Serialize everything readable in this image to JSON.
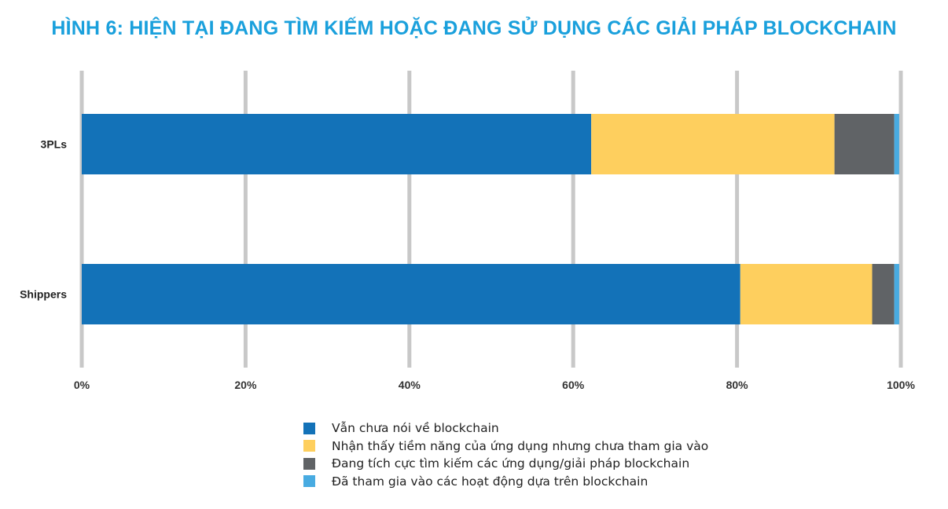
{
  "chart_data": {
    "type": "bar",
    "orientation": "horizontal",
    "stacked": true,
    "title": "HÌNH 6: HIỆN TẠI ĐANG TÌM KIẾM HOẶC ĐANG SỬ DỤNG CÁC GIẢI PHÁP BLOCKCHAIN",
    "categories": [
      "3PLs",
      "Shippers"
    ],
    "x_ticks": [
      "0%",
      "20%",
      "40%",
      "60%",
      "80%",
      "100%"
    ],
    "xlim": [
      0,
      100
    ],
    "grid": true,
    "legend_position": "bottom",
    "series": [
      {
        "name": "Vẫn chưa nói về blockchain",
        "color": "#1372b8",
        "values": [
          62.2,
          80.4
        ]
      },
      {
        "name": "Nhận thấy tiềm năng của ứng dụng nhưng chưa tham gia vào",
        "color": "#fecf5e",
        "values": [
          29.7,
          16.1
        ]
      },
      {
        "name": "Đang tích cực tìm kiếm các ứng dụng/giải pháp blockchain",
        "color": "#606366",
        "values": [
          7.3,
          2.7
        ]
      },
      {
        "name": "Đã tham gia vào các hoạt động dựa trên blockchain",
        "color": "#48abe1",
        "values": [
          0.6,
          0.6
        ]
      }
    ]
  }
}
